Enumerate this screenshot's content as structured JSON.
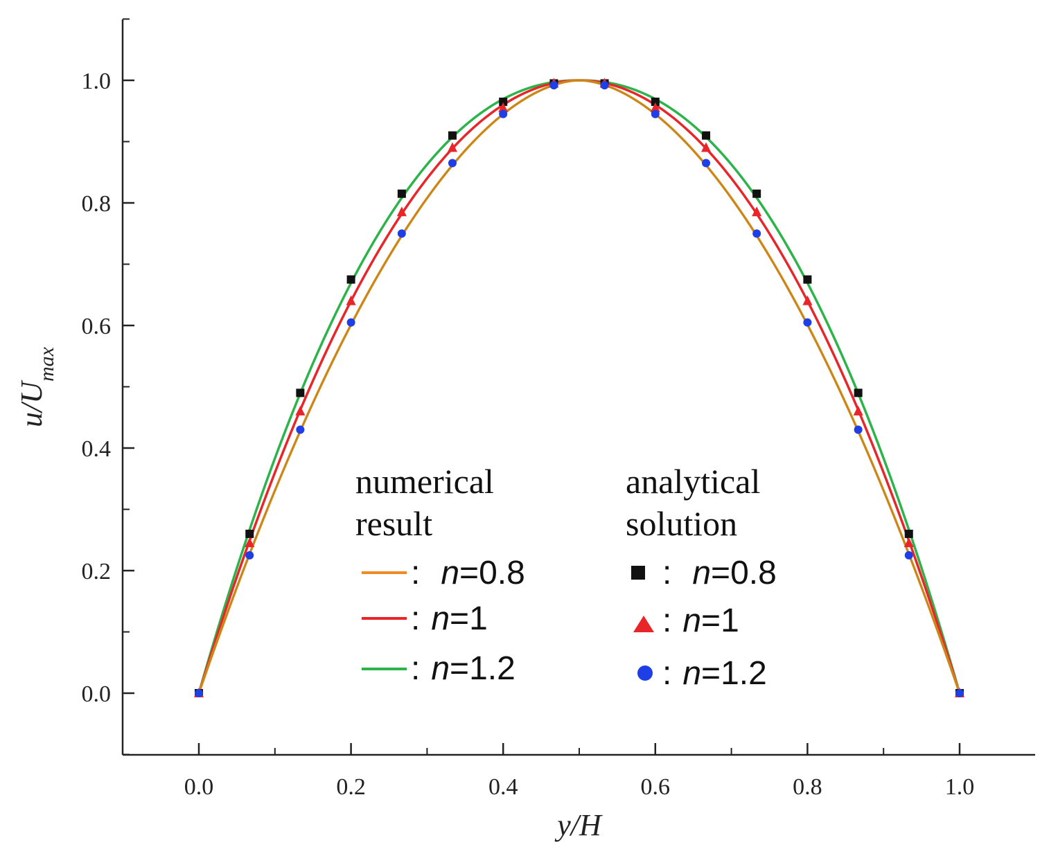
{
  "chart_data": {
    "type": "line",
    "title": "",
    "xlabel": "y/H",
    "ylabel_main": "u/U",
    "ylabel_sub": "max",
    "xlim": [
      -0.1,
      1.1
    ],
    "ylim": [
      -0.1,
      1.1
    ],
    "xticks": [
      0.0,
      0.2,
      0.4,
      0.6,
      0.8,
      1.0
    ],
    "xtick_labels": [
      "0.0",
      "0.2",
      "0.4",
      "0.6",
      "0.8",
      "1.0"
    ],
    "yticks": [
      0.0,
      0.2,
      0.4,
      0.6,
      0.8,
      1.0
    ],
    "ytick_labels": [
      "0.0",
      "0.2",
      "0.4",
      "0.6",
      "0.8",
      "1.0"
    ],
    "line_series": [
      {
        "name": "n=0.8",
        "color": "#f08a24",
        "exponent": 1.8
      },
      {
        "name": "n=1",
        "color": "#e8262a",
        "exponent": 2.0
      },
      {
        "name": "n=1.2",
        "color": "#2cb34a",
        "exponent": 2.1667
      }
    ],
    "curve_overlay_color": "#b98a1a",
    "marker_series": [
      {
        "name": "n=0.8",
        "marker": "square",
        "color": "#111111",
        "x": [
          0.0,
          0.0667,
          0.1333,
          0.2,
          0.2667,
          0.3333,
          0.4,
          0.4667,
          0.5333,
          0.6,
          0.6667,
          0.7333,
          0.8,
          0.8667,
          0.9333,
          1.0
        ],
        "y": [
          0.0,
          0.26,
          0.49,
          0.675,
          0.815,
          0.91,
          0.965,
          0.995,
          0.995,
          0.965,
          0.91,
          0.815,
          0.675,
          0.49,
          0.26,
          0.0
        ]
      },
      {
        "name": "n=1",
        "marker": "triangle",
        "color": "#e8262a",
        "x": [
          0.0,
          0.0667,
          0.1333,
          0.2,
          0.2667,
          0.3333,
          0.4,
          0.4667,
          0.5333,
          0.6,
          0.6667,
          0.7333,
          0.8,
          0.8667,
          0.9333,
          1.0
        ],
        "y": [
          0.0,
          0.245,
          0.46,
          0.64,
          0.785,
          0.89,
          0.955,
          0.995,
          0.995,
          0.955,
          0.89,
          0.785,
          0.64,
          0.46,
          0.245,
          0.0
        ]
      },
      {
        "name": "n=1.2",
        "marker": "circle",
        "color": "#1f3fe6",
        "x": [
          0.0,
          0.0667,
          0.1333,
          0.2,
          0.2667,
          0.3333,
          0.4,
          0.4667,
          0.5333,
          0.6,
          0.6667,
          0.7333,
          0.8,
          0.8667,
          0.9333,
          1.0
        ],
        "y": [
          0.0,
          0.225,
          0.43,
          0.605,
          0.75,
          0.865,
          0.945,
          0.992,
          0.992,
          0.945,
          0.865,
          0.75,
          0.605,
          0.43,
          0.225,
          0.0
        ]
      }
    ],
    "legend": {
      "numerical_heading": [
        "numerical",
        "result"
      ],
      "analytical_heading": [
        "analytical",
        "solution"
      ],
      "separator": ":",
      "var": "n",
      "entries": [
        "=0.8",
        "=1",
        "=1.2"
      ]
    }
  }
}
